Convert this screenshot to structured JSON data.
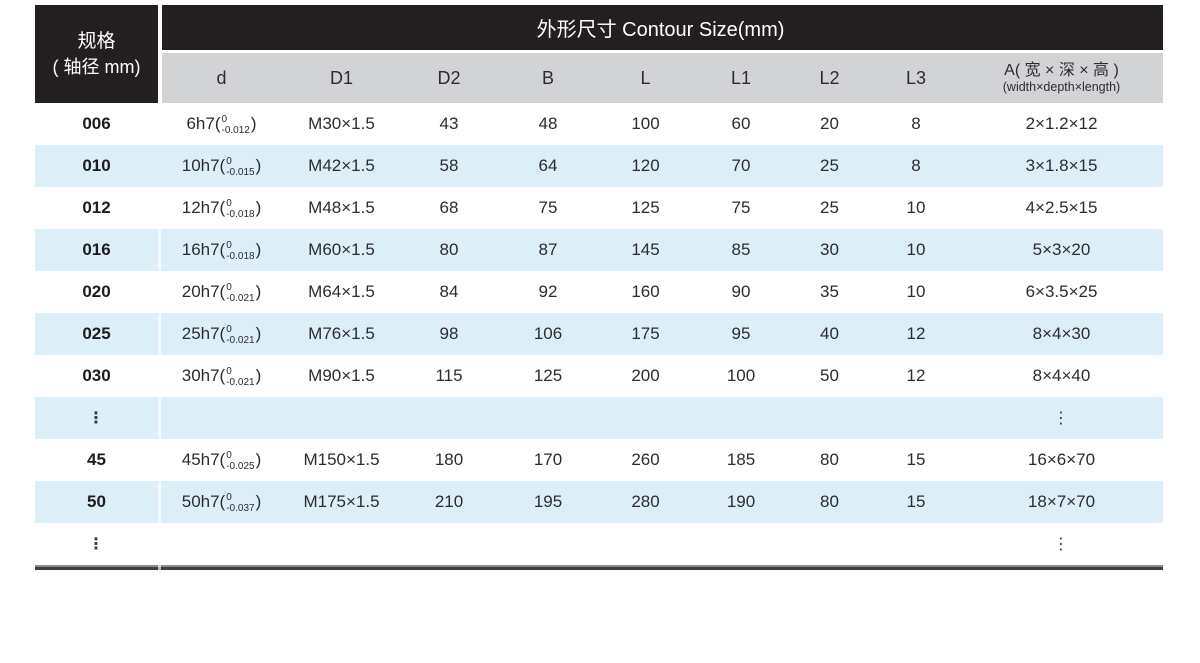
{
  "colors": {
    "header_bg": "#231f20",
    "header_text": "#ffffff",
    "subheader_bg": "#d2d3d5",
    "stripe_blue": "#dceef8",
    "body_text": "#2c2c2e"
  },
  "header": {
    "spec_title_line1": "规格",
    "spec_title_line2": "( 轴径 mm)",
    "contour_title": "外形尺寸 Contour Size(mm)"
  },
  "columns": [
    {
      "key": "d",
      "label": "d"
    },
    {
      "key": "D1",
      "label": "D1"
    },
    {
      "key": "D2",
      "label": "D2"
    },
    {
      "key": "B",
      "label": "B"
    },
    {
      "key": "L",
      "label": "L"
    },
    {
      "key": "L1",
      "label": "L1"
    },
    {
      "key": "L2",
      "label": "L2"
    },
    {
      "key": "L3",
      "label": "L3"
    },
    {
      "key": "A",
      "label_cn": "A( 宽 × 深 × 高 )",
      "label_en": "(width×depth×length)"
    }
  ],
  "ellipsis_glyph": "⋮",
  "rows": [
    {
      "spec": "006",
      "d": {
        "base": "6h7",
        "up": "0",
        "dn": "-0.012"
      },
      "D1": "M30×1.5",
      "D2": "43",
      "B": "48",
      "L": "100",
      "L1": "60",
      "L2": "20",
      "L3": "8",
      "A": "2×1.2×12"
    },
    {
      "spec": "010",
      "d": {
        "base": "10h7",
        "up": "0",
        "dn": "-0.015"
      },
      "D1": "M42×1.5",
      "D2": "58",
      "B": "64",
      "L": "120",
      "L1": "70",
      "L2": "25",
      "L3": "8",
      "A": "3×1.8×15"
    },
    {
      "spec": "012",
      "d": {
        "base": "12h7",
        "up": "0",
        "dn": "-0.018"
      },
      "D1": "M48×1.5",
      "D2": "68",
      "B": "75",
      "L": "125",
      "L1": "75",
      "L2": "25",
      "L3": "10",
      "A": "4×2.5×15"
    },
    {
      "spec": "016",
      "d": {
        "base": "16h7",
        "up": "0",
        "dn": "-0.018"
      },
      "D1": "M60×1.5",
      "D2": "80",
      "B": "87",
      "L": "145",
      "L1": "85",
      "L2": "30",
      "L3": "10",
      "A": "5×3×20"
    },
    {
      "spec": "020",
      "d": {
        "base": "20h7",
        "up": "0",
        "dn": "-0.021"
      },
      "D1": "M64×1.5",
      "D2": "84",
      "B": "92",
      "L": "160",
      "L1": "90",
      "L2": "35",
      "L3": "10",
      "A": "6×3.5×25"
    },
    {
      "spec": "025",
      "d": {
        "base": "25h7",
        "up": "0",
        "dn": "-0.021"
      },
      "D1": "M76×1.5",
      "D2": "98",
      "B": "106",
      "L": "175",
      "L1": "95",
      "L2": "40",
      "L3": "12",
      "A": "8×4×30"
    },
    {
      "spec": "030",
      "d": {
        "base": "30h7",
        "up": "0",
        "dn": "-0.021"
      },
      "D1": "M90×1.5",
      "D2": "115",
      "B": "125",
      "L": "200",
      "L1": "100",
      "L2": "50",
      "L3": "12",
      "A": "8×4×40"
    },
    {
      "ellipsis": true
    },
    {
      "spec": "45",
      "d": {
        "base": "45h7",
        "up": "0",
        "dn": "-0.025"
      },
      "D1": "M150×1.5",
      "D2": "180",
      "B": "170",
      "L": "260",
      "L1": "185",
      "L2": "80",
      "L3": "15",
      "A": "16×6×70"
    },
    {
      "spec": "50",
      "d": {
        "base": "50h7",
        "up": "0",
        "dn": "-0.037"
      },
      "D1": "M175×1.5",
      "D2": "210",
      "B": "195",
      "L": "280",
      "L1": "190",
      "L2": "80",
      "L3": "15",
      "A": "18×7×70"
    },
    {
      "ellipsis": true
    }
  ]
}
